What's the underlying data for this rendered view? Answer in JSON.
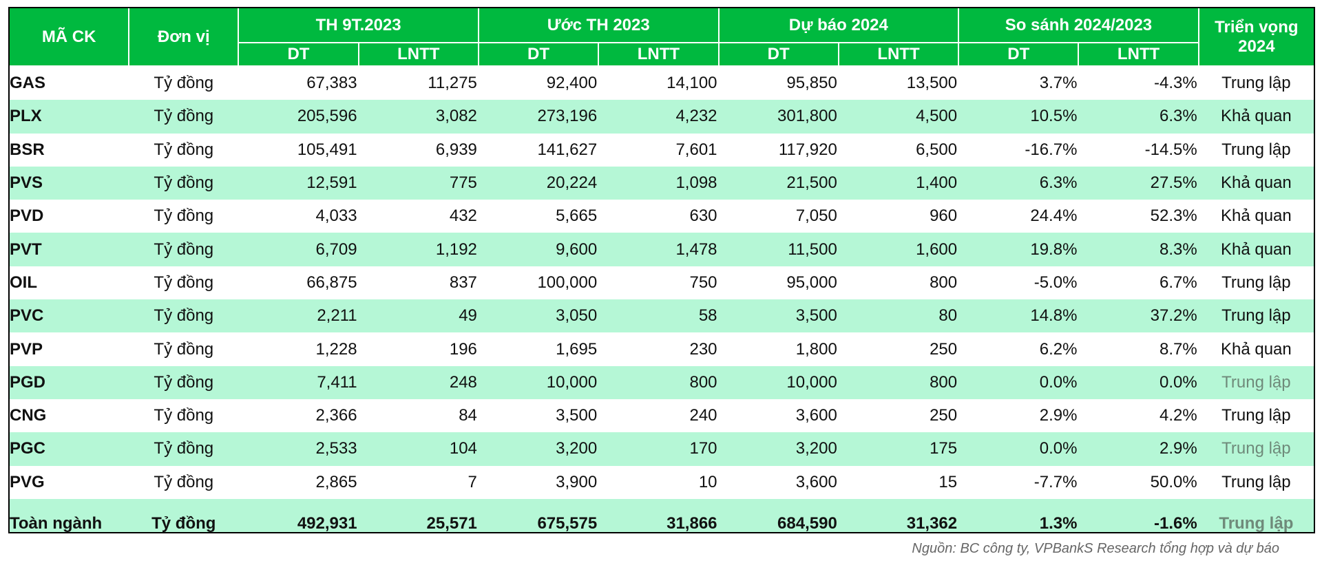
{
  "header": {
    "code": "MÃ CK",
    "unit": "Đơn vị",
    "groups": [
      "TH 9T.2023",
      "Ước TH 2023",
      "Dự báo 2024",
      "So sánh 2024/2023"
    ],
    "outlook": "Triển vọng 2024",
    "sub": [
      "DT",
      "LNTT",
      "DT",
      "LNTT",
      "DT",
      "LNTT",
      "DT",
      "LNTT"
    ]
  },
  "rows": [
    {
      "code": "GAS",
      "unit": "Tỷ đồng",
      "v": [
        "67,383",
        "11,275",
        "92,400",
        "14,100",
        "95,850",
        "13,500",
        "3.7%",
        "-4.3%"
      ],
      "outlook": "Trung lập",
      "muted": false
    },
    {
      "code": "PLX",
      "unit": "Tỷ đồng",
      "v": [
        "205,596",
        "3,082",
        "273,196",
        "4,232",
        "301,800",
        "4,500",
        "10.5%",
        "6.3%"
      ],
      "outlook": "Khả quan",
      "muted": false
    },
    {
      "code": "BSR",
      "unit": "Tỷ đồng",
      "v": [
        "105,491",
        "6,939",
        "141,627",
        "7,601",
        "117,920",
        "6,500",
        "-16.7%",
        "-14.5%"
      ],
      "outlook": "Trung lập",
      "muted": false
    },
    {
      "code": "PVS",
      "unit": "Tỷ đồng",
      "v": [
        "12,591",
        "775",
        "20,224",
        "1,098",
        "21,500",
        "1,400",
        "6.3%",
        "27.5%"
      ],
      "outlook": "Khả quan",
      "muted": false
    },
    {
      "code": "PVD",
      "unit": "Tỷ đồng",
      "v": [
        "4,033",
        "432",
        "5,665",
        "630",
        "7,050",
        "960",
        "24.4%",
        "52.3%"
      ],
      "outlook": "Khả quan",
      "muted": false
    },
    {
      "code": "PVT",
      "unit": "Tỷ đồng",
      "v": [
        "6,709",
        "1,192",
        "9,600",
        "1,478",
        "11,500",
        "1,600",
        "19.8%",
        "8.3%"
      ],
      "outlook": "Khả quan",
      "muted": false
    },
    {
      "code": "OIL",
      "unit": "Tỷ đồng",
      "v": [
        "66,875",
        "837",
        "100,000",
        "750",
        "95,000",
        "800",
        "-5.0%",
        "6.7%"
      ],
      "outlook": "Trung lập",
      "muted": false
    },
    {
      "code": "PVC",
      "unit": "Tỷ đồng",
      "v": [
        "2,211",
        "49",
        "3,050",
        "58",
        "3,500",
        "80",
        "14.8%",
        "37.2%"
      ],
      "outlook": "Trung lập",
      "muted": false
    },
    {
      "code": "PVP",
      "unit": "Tỷ đồng",
      "v": [
        "1,228",
        "196",
        "1,695",
        "230",
        "1,800",
        "250",
        "6.2%",
        "8.7%"
      ],
      "outlook": "Khả quan",
      "muted": false
    },
    {
      "code": "PGD",
      "unit": "Tỷ đồng",
      "v": [
        "7,411",
        "248",
        "10,000",
        "800",
        "10,000",
        "800",
        "0.0%",
        "0.0%"
      ],
      "outlook": "Trung lập",
      "muted": true
    },
    {
      "code": "CNG",
      "unit": "Tỷ đồng",
      "v": [
        "2,366",
        "84",
        "3,500",
        "240",
        "3,600",
        "250",
        "2.9%",
        "4.2%"
      ],
      "outlook": "Trung lập",
      "muted": false
    },
    {
      "code": "PGC",
      "unit": "Tỷ đồng",
      "v": [
        "2,533",
        "104",
        "3,200",
        "170",
        "3,200",
        "175",
        "0.0%",
        "2.9%"
      ],
      "outlook": "Trung lập",
      "muted": true
    },
    {
      "code": "PVG",
      "unit": "Tỷ đồng",
      "v": [
        "2,865",
        "7",
        "3,900",
        "10",
        "3,600",
        "15",
        "-7.7%",
        "50.0%"
      ],
      "outlook": "Trung lập",
      "muted": false
    }
  ],
  "total": {
    "code": "Toàn ngành",
    "unit": "Tỷ đồng",
    "v": [
      "492,931",
      "25,571",
      "675,575",
      "31,866",
      "684,590",
      "31,362",
      "1.3%",
      "-1.6%"
    ],
    "outlook": "Trung lập",
    "muted": true
  },
  "source": "Nguồn: BC công ty, VPBankS Research  tổng hợp và dự báo",
  "colors": {
    "header_bg": "#00b93f",
    "alt_row": "#b5f7d6",
    "muted_text": "#6f8a7a"
  }
}
